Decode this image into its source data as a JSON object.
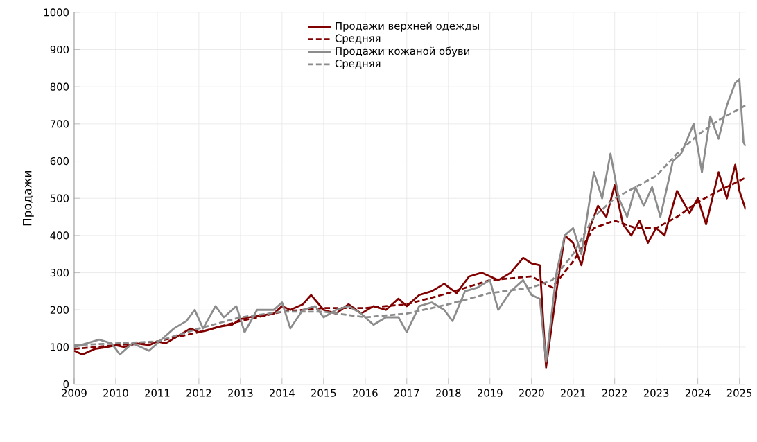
{
  "chart_data": {
    "type": "line",
    "ylabel": "Продажи",
    "xlim": [
      2009,
      2025.15
    ],
    "ylim": [
      0,
      1000
    ],
    "xticks": [
      2009,
      2010,
      2011,
      2012,
      2013,
      2014,
      2015,
      2016,
      2017,
      2018,
      2019,
      2020,
      2021,
      2022,
      2023,
      2024,
      2025
    ],
    "yticks": [
      0,
      100,
      200,
      300,
      400,
      500,
      600,
      700,
      800,
      900,
      1000
    ],
    "grid": true,
    "legend": "top",
    "marker": "none",
    "series": [
      {
        "name": "Продажи верхней одежды",
        "color": "#800000",
        "line_style": "solid",
        "x": [
          2009.0,
          2009.2,
          2009.5,
          2009.8,
          2010.0,
          2010.2,
          2010.5,
          2010.8,
          2011.0,
          2011.2,
          2011.5,
          2011.8,
          2012.0,
          2012.2,
          2012.5,
          2012.8,
          2013.0,
          2013.2,
          2013.5,
          2013.8,
          2014.0,
          2014.2,
          2014.5,
          2014.7,
          2015.0,
          2015.3,
          2015.6,
          2015.9,
          2016.2,
          2016.5,
          2016.8,
          2017.0,
          2017.3,
          2017.6,
          2017.9,
          2018.2,
          2018.5,
          2018.8,
          2019.2,
          2019.5,
          2019.8,
          2020.0,
          2020.2,
          2020.35,
          2020.6,
          2020.8,
          2021.0,
          2021.2,
          2021.4,
          2021.6,
          2021.8,
          2022.0,
          2022.2,
          2022.4,
          2022.6,
          2022.8,
          2023.0,
          2023.2,
          2023.5,
          2023.8,
          2024.0,
          2024.2,
          2024.5,
          2024.7,
          2024.9,
          2025.0,
          2025.15
        ],
        "values": [
          90,
          80,
          95,
          100,
          105,
          100,
          110,
          105,
          115,
          110,
          130,
          150,
          140,
          145,
          155,
          160,
          175,
          180,
          185,
          190,
          210,
          200,
          215,
          240,
          200,
          190,
          215,
          190,
          210,
          200,
          230,
          210,
          240,
          250,
          270,
          245,
          290,
          300,
          280,
          300,
          340,
          325,
          320,
          45,
          250,
          400,
          380,
          320,
          420,
          480,
          450,
          535,
          430,
          400,
          440,
          380,
          420,
          400,
          520,
          460,
          500,
          430,
          570,
          500,
          590,
          520,
          470
        ]
      },
      {
        "name": "Средняя",
        "color": "#800000",
        "line_style": "dashed",
        "x": [
          2009,
          2010,
          2011,
          2012,
          2013,
          2014,
          2015,
          2016,
          2017,
          2018,
          2019,
          2020,
          2020.5,
          2021,
          2021.5,
          2022,
          2022.5,
          2023,
          2023.5,
          2024,
          2024.5,
          2025.15
        ],
        "values": [
          95,
          105,
          115,
          140,
          170,
          195,
          205,
          205,
          215,
          245,
          280,
          290,
          260,
          330,
          420,
          440,
          420,
          420,
          450,
          490,
          520,
          555
        ]
      },
      {
        "name": "Продажи кожаной обуви",
        "color": "#8c8c8c",
        "line_style": "solid",
        "x": [
          2009.0,
          2009.3,
          2009.6,
          2009.9,
          2010.1,
          2010.4,
          2010.8,
          2011.1,
          2011.4,
          2011.7,
          2011.9,
          2012.1,
          2012.4,
          2012.6,
          2012.9,
          2013.1,
          2013.4,
          2013.8,
          2014.0,
          2014.2,
          2014.5,
          2014.8,
          2015.0,
          2015.3,
          2015.6,
          2015.9,
          2016.2,
          2016.5,
          2016.8,
          2017.0,
          2017.3,
          2017.6,
          2017.9,
          2018.1,
          2018.4,
          2018.7,
          2019.0,
          2019.2,
          2019.5,
          2019.8,
          2020.0,
          2020.2,
          2020.35,
          2020.6,
          2020.8,
          2021.0,
          2021.2,
          2021.5,
          2021.7,
          2021.9,
          2022.1,
          2022.3,
          2022.5,
          2022.7,
          2022.9,
          2023.1,
          2023.4,
          2023.6,
          2023.9,
          2024.1,
          2024.3,
          2024.5,
          2024.7,
          2024.9,
          2025.0,
          2025.1,
          2025.15
        ],
        "values": [
          100,
          110,
          120,
          110,
          80,
          110,
          90,
          120,
          150,
          170,
          200,
          150,
          210,
          180,
          210,
          140,
          200,
          200,
          220,
          150,
          200,
          210,
          180,
          200,
          210,
          190,
          160,
          180,
          180,
          140,
          210,
          220,
          200,
          170,
          250,
          260,
          280,
          200,
          250,
          280,
          240,
          230,
          60,
          300,
          400,
          420,
          350,
          570,
          500,
          620,
          500,
          450,
          530,
          480,
          530,
          450,
          600,
          620,
          700,
          570,
          720,
          660,
          750,
          810,
          820,
          650,
          640
        ]
      },
      {
        "name": "Средняя",
        "color": "#8c8c8c",
        "line_style": "dashed",
        "x": [
          2009,
          2010,
          2011,
          2012,
          2013,
          2014,
          2015,
          2016,
          2017,
          2018,
          2019,
          2020,
          2020.5,
          2021,
          2021.5,
          2022,
          2022.5,
          2023,
          2023.5,
          2024,
          2024.5,
          2025.15
        ],
        "values": [
          105,
          110,
          115,
          150,
          180,
          195,
          195,
          180,
          190,
          215,
          245,
          260,
          280,
          350,
          450,
          500,
          530,
          560,
          620,
          670,
          710,
          750
        ]
      }
    ]
  }
}
